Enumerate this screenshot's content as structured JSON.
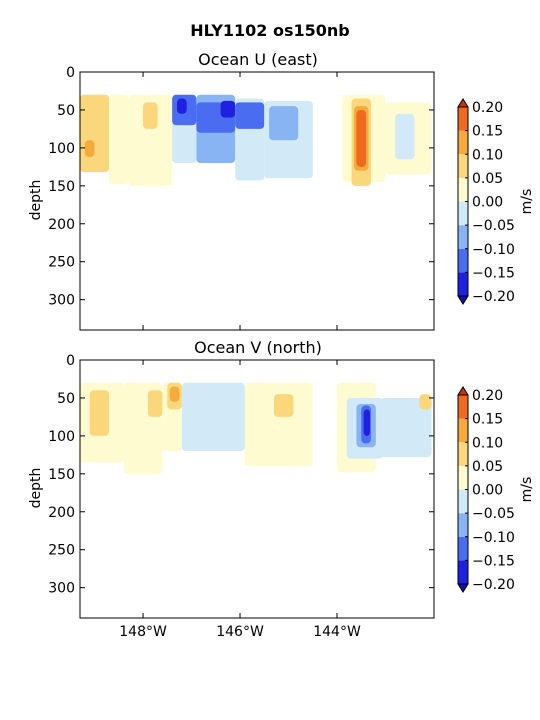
{
  "figure": {
    "title": "HLY1102 os150nb"
  },
  "colorbar": {
    "unit": "m/s",
    "ticks": [
      "0.20",
      "0.15",
      "0.10",
      "0.05",
      "0.00",
      "−0.05",
      "−0.10",
      "−0.15",
      "−0.20"
    ],
    "levels": [
      -0.2,
      -0.15,
      -0.1,
      -0.05,
      0.0,
      0.05,
      0.1,
      0.15,
      0.2
    ],
    "colors_low_to_high": [
      "#2020e0",
      "#4a6cf0",
      "#88b4f4",
      "#d2eaf8",
      "#fffbd0",
      "#fbd77c",
      "#f5ab3c",
      "#ee6a1f"
    ],
    "extend_low": "#1010b0",
    "extend_high": "#d03010"
  },
  "chart_data": [
    {
      "type": "heatmap",
      "title": "Ocean U (east)",
      "xlabel": "",
      "ylabel": "depth",
      "xlim": [
        -149.3,
        -142.0
      ],
      "ylim": [
        340,
        0
      ],
      "y_ticks": [
        0,
        50,
        100,
        150,
        200,
        250,
        300
      ],
      "x_ticks": [
        -148,
        -146,
        -144
      ],
      "x_tick_labels": [
        "148°W",
        "146°W",
        "144°W"
      ],
      "show_x_tick_labels": false,
      "patches": [
        {
          "lon": [
            -149.3,
            -148.7
          ],
          "depth": [
            30,
            132
          ],
          "value": 0.07
        },
        {
          "lon": [
            -149.2,
            -149.0
          ],
          "depth": [
            90,
            112
          ],
          "value": 0.12
        },
        {
          "lon": [
            -148.7,
            -148.3
          ],
          "depth": [
            30,
            148
          ],
          "value": 0.02
        },
        {
          "lon": [
            -148.3,
            -147.4
          ],
          "depth": [
            30,
            150
          ],
          "value": 0.01
        },
        {
          "lon": [
            -148.0,
            -147.7
          ],
          "depth": [
            40,
            75
          ],
          "value": 0.06
        },
        {
          "lon": [
            -147.4,
            -146.9
          ],
          "depth": [
            30,
            120
          ],
          "value": -0.04
        },
        {
          "lon": [
            -147.4,
            -146.9
          ],
          "depth": [
            30,
            70
          ],
          "value": -0.13
        },
        {
          "lon": [
            -147.3,
            -147.1
          ],
          "depth": [
            35,
            55
          ],
          "value": -0.19
        },
        {
          "lon": [
            -146.9,
            -146.1
          ],
          "depth": [
            30,
            120
          ],
          "value": -0.06
        },
        {
          "lon": [
            -146.9,
            -146.1
          ],
          "depth": [
            40,
            80
          ],
          "value": -0.12
        },
        {
          "lon": [
            -146.4,
            -146.1
          ],
          "depth": [
            38,
            60
          ],
          "value": -0.17
        },
        {
          "lon": [
            -146.1,
            -145.5
          ],
          "depth": [
            35,
            143
          ],
          "value": -0.03
        },
        {
          "lon": [
            -146.1,
            -145.5
          ],
          "depth": [
            40,
            75
          ],
          "value": -0.11
        },
        {
          "lon": [
            -145.5,
            -144.5
          ],
          "depth": [
            38,
            140
          ],
          "value": -0.03
        },
        {
          "lon": [
            -145.4,
            -144.8
          ],
          "depth": [
            45,
            90
          ],
          "value": -0.07
        },
        {
          "lon": [
            -143.9,
            -143.0
          ],
          "depth": [
            30,
            145
          ],
          "value": 0.01
        },
        {
          "lon": [
            -143.7,
            -143.3
          ],
          "depth": [
            35,
            150
          ],
          "value": 0.06
        },
        {
          "lon": [
            -143.65,
            -143.35
          ],
          "depth": [
            45,
            130
          ],
          "value": 0.11
        },
        {
          "lon": [
            -143.6,
            -143.4
          ],
          "depth": [
            50,
            125
          ],
          "value": 0.17
        },
        {
          "lon": [
            -143.0,
            -142.05
          ],
          "depth": [
            40,
            135
          ],
          "value": 0.02
        },
        {
          "lon": [
            -142.8,
            -142.4
          ],
          "depth": [
            55,
            115
          ],
          "value": -0.03
        }
      ]
    },
    {
      "type": "heatmap",
      "title": "Ocean V (north)",
      "xlabel": "",
      "ylabel": "depth",
      "xlim": [
        -149.3,
        -142.0
      ],
      "ylim": [
        340,
        0
      ],
      "y_ticks": [
        0,
        50,
        100,
        150,
        200,
        250,
        300
      ],
      "x_ticks": [
        -148,
        -146,
        -144
      ],
      "x_tick_labels": [
        "148°W",
        "146°W",
        "144°W"
      ],
      "show_x_tick_labels": true,
      "patches": [
        {
          "lon": [
            -149.3,
            -148.4
          ],
          "depth": [
            30,
            135
          ],
          "value": 0.03
        },
        {
          "lon": [
            -149.1,
            -148.7
          ],
          "depth": [
            40,
            100
          ],
          "value": 0.07
        },
        {
          "lon": [
            -148.4,
            -147.6
          ],
          "depth": [
            30,
            150
          ],
          "value": 0.01
        },
        {
          "lon": [
            -147.9,
            -147.6
          ],
          "depth": [
            40,
            75
          ],
          "value": 0.06
        },
        {
          "lon": [
            -147.6,
            -147.2
          ],
          "depth": [
            30,
            120
          ],
          "value": 0.03
        },
        {
          "lon": [
            -147.5,
            -147.2
          ],
          "depth": [
            30,
            65
          ],
          "value": 0.09
        },
        {
          "lon": [
            -147.45,
            -147.25
          ],
          "depth": [
            35,
            55
          ],
          "value": 0.14
        },
        {
          "lon": [
            -147.2,
            -145.9
          ],
          "depth": [
            30,
            120
          ],
          "value": -0.02
        },
        {
          "lon": [
            -145.9,
            -144.5
          ],
          "depth": [
            30,
            140
          ],
          "value": 0.02
        },
        {
          "lon": [
            -145.3,
            -144.9
          ],
          "depth": [
            45,
            75
          ],
          "value": 0.06
        },
        {
          "lon": [
            -144.0,
            -143.2
          ],
          "depth": [
            30,
            148
          ],
          "value": 0.01
        },
        {
          "lon": [
            -143.8,
            -143.05
          ],
          "depth": [
            50,
            130
          ],
          "value": -0.04
        },
        {
          "lon": [
            -143.6,
            -143.2
          ],
          "depth": [
            58,
            115
          ],
          "value": -0.09
        },
        {
          "lon": [
            -143.5,
            -143.3
          ],
          "depth": [
            60,
            110
          ],
          "value": -0.14
        },
        {
          "lon": [
            -143.45,
            -143.32
          ],
          "depth": [
            65,
            100
          ],
          "value": -0.19
        },
        {
          "lon": [
            -143.1,
            -142.05
          ],
          "depth": [
            50,
            128
          ],
          "value": -0.02
        },
        {
          "lon": [
            -142.3,
            -142.05
          ],
          "depth": [
            45,
            65
          ],
          "value": 0.06
        }
      ]
    }
  ]
}
